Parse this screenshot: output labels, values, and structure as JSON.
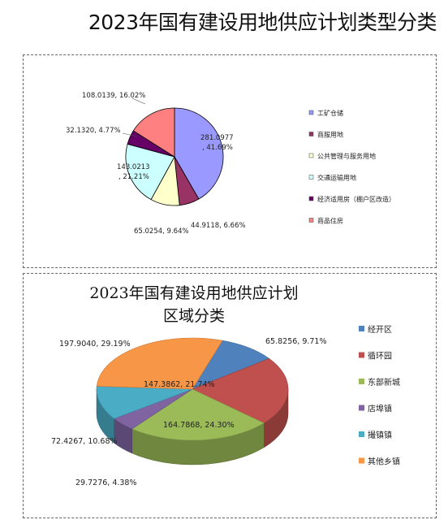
{
  "page_title": "2023年国有建设用地供应计划类型分类",
  "chart_data": [
    {
      "type": "pie",
      "title": "",
      "legend_position": "right",
      "slices": [
        {
          "name": "工矿仓储",
          "value": 281.0977,
          "percent": 41.69,
          "label": "281.0977, 41.69%",
          "color": "#9999FF"
        },
        {
          "name": "商服用地",
          "value": 44.9118,
          "percent": 6.66,
          "label": "44.9118, 6.66%",
          "color": "#993366"
        },
        {
          "name": "公共管理与服务用地",
          "value": 65.0254,
          "percent": 9.64,
          "label": "65.0254, 9.64%",
          "color": "#FFFFCC"
        },
        {
          "name": "交通运输用地",
          "value": 143.0213,
          "percent": 21.21,
          "label": "143.0213, 21.21%",
          "color": "#CCFFFF"
        },
        {
          "name": "经济适用房（棚户区改造）",
          "value": 32.132,
          "percent": 4.77,
          "label": "32.1320, 4.77%",
          "color": "#660066"
        },
        {
          "name": "商品住房",
          "value": 108.0139,
          "percent": 16.02,
          "label": "108.0139, 16.02%",
          "color": "#FF8080"
        }
      ]
    },
    {
      "type": "pie",
      "title_line1": "2023年国有建设用地供应计划",
      "title_line2": "区域分类",
      "legend_position": "right",
      "slices": [
        {
          "name": "经开区",
          "value": 65.8256,
          "percent": 9.71,
          "label": "65.8256, 9.71%",
          "color": "#4F81BD"
        },
        {
          "name": "循环园",
          "value": 147.3862,
          "percent": 21.74,
          "label": "147.3862, 21.74%",
          "color": "#C0504D"
        },
        {
          "name": "东部新城",
          "value": 164.7868,
          "percent": 24.3,
          "label": "164.7868, 24.30%",
          "color": "#9BBB59"
        },
        {
          "name": "店埠镇",
          "value": 29.7276,
          "percent": 4.38,
          "label": "29.7276, 4.38%",
          "color": "#8064A2"
        },
        {
          "name": "撮镇镇",
          "value": 72.4267,
          "percent": 10.68,
          "label": "72.4267, 10.68%",
          "color": "#4BACC6"
        },
        {
          "name": "其他乡镇",
          "value": 197.904,
          "percent": 29.19,
          "label": "197.9040, 29.19%",
          "color": "#F79646"
        }
      ]
    }
  ]
}
